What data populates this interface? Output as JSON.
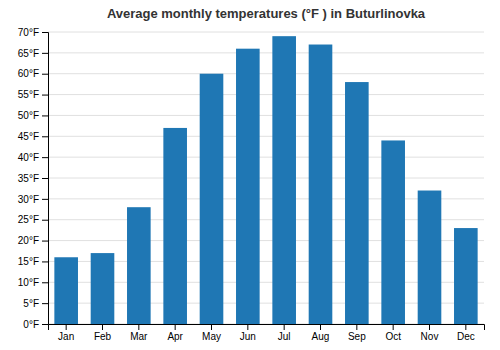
{
  "chart_data": {
    "type": "bar",
    "title": "Average monthly temperatures (°F ) in Buturlinovka",
    "categories": [
      "Jan",
      "Feb",
      "Mar",
      "Apr",
      "May",
      "Jun",
      "Jul",
      "Aug",
      "Sep",
      "Oct",
      "Nov",
      "Dec"
    ],
    "values": [
      16,
      17,
      28,
      47,
      60,
      66,
      69,
      67,
      58,
      44,
      32,
      23
    ],
    "ylim": [
      0,
      70
    ],
    "yticks": [
      {
        "value": 0,
        "label": "0°F"
      },
      {
        "value": 5,
        "label": "5°F"
      },
      {
        "value": 10,
        "label": "10°F"
      },
      {
        "value": 15,
        "label": "15°F"
      },
      {
        "value": 20,
        "label": "20°F"
      },
      {
        "value": 25,
        "label": "25°F"
      },
      {
        "value": 30,
        "label": "30°F"
      },
      {
        "value": 35,
        "label": "35°F"
      },
      {
        "value": 40,
        "label": "40°F"
      },
      {
        "value": 45,
        "label": "45°F"
      },
      {
        "value": 50,
        "label": "50°F"
      },
      {
        "value": 55,
        "label": "55°F"
      },
      {
        "value": 60,
        "label": "60°F"
      },
      {
        "value": 65,
        "label": "65°F"
      },
      {
        "value": 70,
        "label": "70°F"
      }
    ],
    "grid": true
  }
}
